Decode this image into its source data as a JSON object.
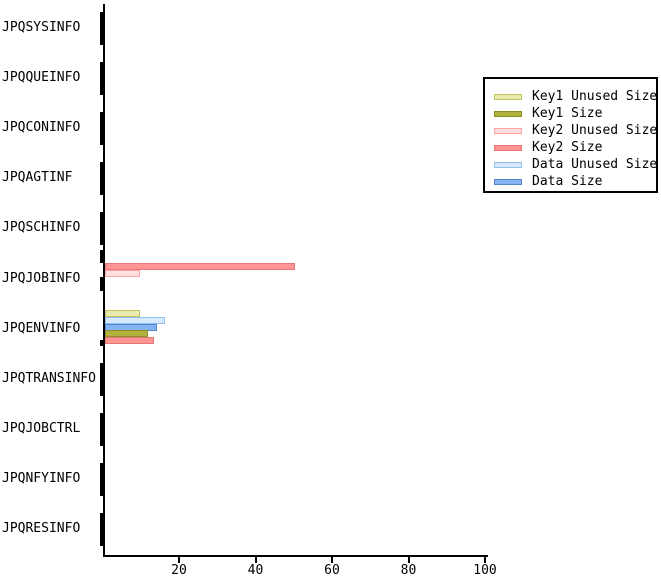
{
  "chart_data": {
    "type": "bar",
    "orientation": "horizontal",
    "title": "",
    "xlabel": "",
    "ylabel": "",
    "categories": [
      "JPQSYSINFO",
      "JPQQUEINFO",
      "JPQCONINFO",
      "JPQAGTINF",
      "JPQSCHINFO",
      "JPQJOBINFO",
      "JPQENVINFO",
      "JPQTRANSINFO",
      "JPQJOBCTRL",
      "JPQNFYINFO",
      "JPQRESINFO"
    ],
    "series": [
      {
        "name": "Key1 Unused Size",
        "fill": "#EAEAAD",
        "stroke": "#C2C25E"
      },
      {
        "name": "Key1 Size",
        "fill": "#B1B13D",
        "stroke": "#8E8E2A"
      },
      {
        "name": "Key2 Unused Size",
        "fill": "#FFDEDE",
        "stroke": "#FFA3A3"
      },
      {
        "name": "Key2 Size",
        "fill": "#FF9494",
        "stroke": "#E87777"
      },
      {
        "name": "Data Unused Size",
        "fill": "#D7E9FE",
        "stroke": "#92BFEC"
      },
      {
        "name": "Data Size",
        "fill": "#84B3F1",
        "stroke": "#5586CB"
      }
    ],
    "bars": [
      {
        "category": "JPQJOBINFO",
        "series": "Key2 Size",
        "value": 50
      },
      {
        "category": "JPQJOBINFO",
        "series": "Key2 Unused Size",
        "value": 9.5
      },
      {
        "category": "JPQENVINFO",
        "series": "Key1 Unused Size",
        "value": 9.5
      },
      {
        "category": "JPQENVINFO",
        "series": "Data Unused Size",
        "value": 16
      },
      {
        "category": "JPQENVINFO",
        "series": "Data Size",
        "value": 14
      },
      {
        "category": "JPQENVINFO",
        "series": "Key1 Size",
        "value": 11.5
      },
      {
        "category": "JPQENVINFO",
        "series": "Key2 Size",
        "value": 13
      }
    ],
    "x_axis": {
      "min": 0,
      "max": 100,
      "ticks": [
        "20",
        "40",
        "60",
        "80",
        "100"
      ]
    },
    "legend_position": "right",
    "grid": false,
    "axis_color": "#000000",
    "background": "#FFFFFF"
  }
}
